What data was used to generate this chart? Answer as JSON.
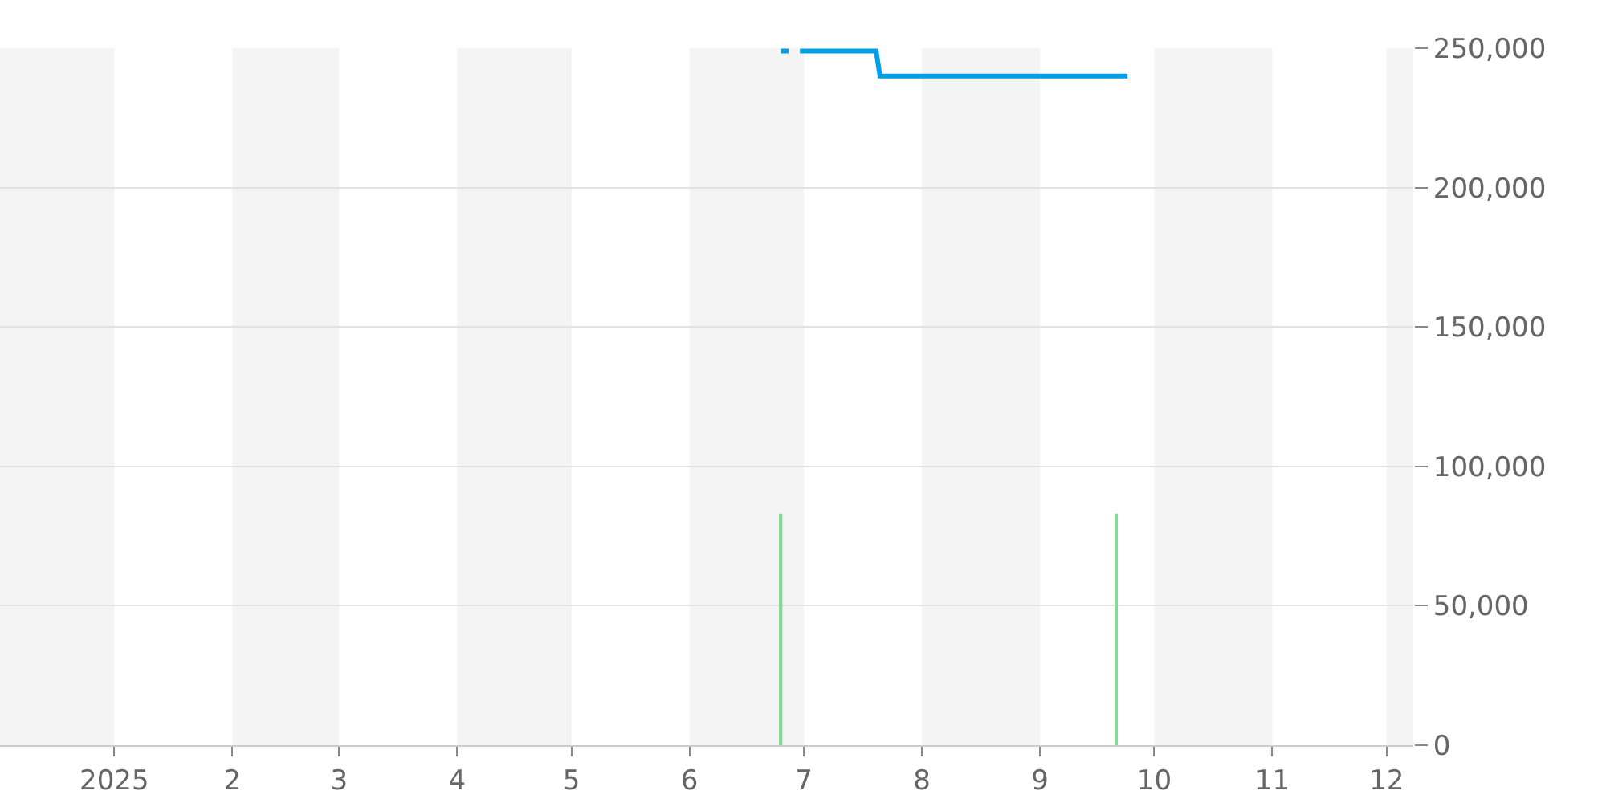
{
  "chart_data": {
    "type": "line",
    "xlim": [
      "2024-12-02",
      "2025-12-08"
    ],
    "xticks": [
      {
        "value": "2025-01-01",
        "label": "2025"
      },
      {
        "value": "2025-02-01",
        "label": "2"
      },
      {
        "value": "2025-03-01",
        "label": "3"
      },
      {
        "value": "2025-04-01",
        "label": "4"
      },
      {
        "value": "2025-05-01",
        "label": "5"
      },
      {
        "value": "2025-06-01",
        "label": "6"
      },
      {
        "value": "2025-07-01",
        "label": "7"
      },
      {
        "value": "2025-08-01",
        "label": "8"
      },
      {
        "value": "2025-09-01",
        "label": "9"
      },
      {
        "value": "2025-10-01",
        "label": "10"
      },
      {
        "value": "2025-11-01",
        "label": "11"
      },
      {
        "value": "2025-12-01",
        "label": "12"
      }
    ],
    "ylim": [
      0,
      250000
    ],
    "yticks": [
      {
        "value": 0,
        "label": "0"
      },
      {
        "value": 50000,
        "label": "50,000"
      },
      {
        "value": 100000,
        "label": "100,000"
      },
      {
        "value": 150000,
        "label": "150,000"
      },
      {
        "value": 200000,
        "label": "200,000"
      },
      {
        "value": 250000,
        "label": "250,000"
      }
    ],
    "grid": "y",
    "bands": [
      {
        "axis": "x",
        "from": "2024-12-02",
        "to": "2025-01-01",
        "color": "#f4f4f4"
      },
      {
        "axis": "x",
        "from": "2025-02-01",
        "to": "2025-03-01",
        "color": "#f4f4f4"
      },
      {
        "axis": "x",
        "from": "2025-04-01",
        "to": "2025-05-01",
        "color": "#f4f4f4"
      },
      {
        "axis": "x",
        "from": "2025-06-01",
        "to": "2025-07-01",
        "color": "#f4f4f4"
      },
      {
        "axis": "x",
        "from": "2025-08-01",
        "to": "2025-09-01",
        "color": "#f4f4f4"
      },
      {
        "axis": "x",
        "from": "2025-10-01",
        "to": "2025-11-01",
        "color": "#f4f4f4"
      },
      {
        "axis": "x",
        "from": "2025-12-01",
        "to": "2025-12-08",
        "color": "#f4f4f4"
      }
    ],
    "series": [
      {
        "type": "bar",
        "color": "#88d898",
        "x": [
          "2025-06-25",
          "2025-09-21"
        ],
        "values": [
          83000,
          83000
        ]
      },
      {
        "color": "#009fe8",
        "x": [
          "2025-06-25",
          "2025-06-27",
          "2025-06-28",
          "2025-06-30",
          "2025-07-20",
          "2025-07-21",
          "2025-09-24"
        ],
        "values": [
          249000,
          249000,
          null,
          249000,
          249000,
          240000,
          240000
        ]
      }
    ]
  }
}
